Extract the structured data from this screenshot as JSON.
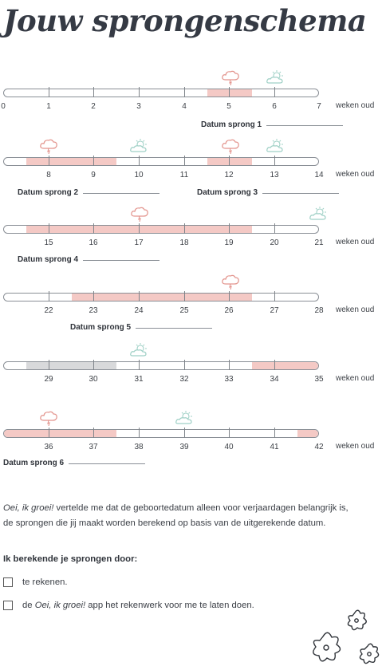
{
  "title": "Jouw sprongenschema",
  "unit_label": "weken oud",
  "colors": {
    "leap": "#f4c9c5",
    "grey": "#d8d9db",
    "storm_icon": "#e3948d",
    "sun_icon": "#9fd0c6"
  },
  "rows": [
    {
      "labels": [
        "0",
        "1",
        "2",
        "3",
        "4",
        "5",
        "6",
        "7"
      ]
    },
    {
      "labels": [
        "8",
        "9",
        "10",
        "11",
        "12",
        "13",
        "14"
      ]
    },
    {
      "labels": [
        "15",
        "16",
        "17",
        "18",
        "19",
        "20",
        "21"
      ]
    },
    {
      "labels": [
        "22",
        "23",
        "24",
        "25",
        "26",
        "27",
        "28"
      ]
    },
    {
      "labels": [
        "29",
        "30",
        "31",
        "32",
        "33",
        "34",
        "35"
      ]
    },
    {
      "labels": [
        "36",
        "37",
        "38",
        "39",
        "40",
        "41",
        "42"
      ]
    }
  ],
  "datums": [
    {
      "label": "Datum sprong 1"
    },
    {
      "label": "Datum sprong 2"
    },
    {
      "label": "Datum sprong 3"
    },
    {
      "label": "Datum sprong 4"
    },
    {
      "label": "Datum sprong 5"
    },
    {
      "label": "Datum sprong 6"
    }
  ],
  "paragraph": {
    "brand": "Oei, ik groei!",
    "text_1": " vertelde me dat de geboortedatum alleen voor verjaardagen belangrijk is,",
    "text_2": "de sprongen die jij maakt worden berekend op basis van de uitgerekende datum."
  },
  "subheading": "Ik berekende je sprongen door:",
  "options": [
    {
      "text": "te rekenen."
    },
    {
      "prefix": "de ",
      "brand": "Oei, ik groei!",
      "suffix": " app het rekenwerk voor me te laten doen."
    }
  ]
}
